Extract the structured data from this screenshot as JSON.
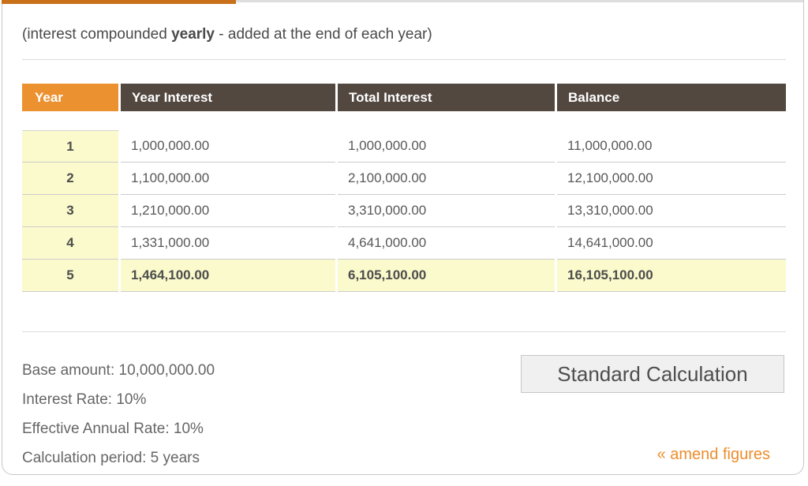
{
  "note": {
    "prefix": "(interest compounded ",
    "bold": "yearly",
    "suffix": " - added at the end of each year)"
  },
  "table": {
    "headers": [
      "Year",
      "Year Interest",
      "Total Interest",
      "Balance"
    ],
    "rows": [
      {
        "year": "1",
        "year_interest": "1,000,000.00",
        "total_interest": "1,000,000.00",
        "balance": "11,000,000.00"
      },
      {
        "year": "2",
        "year_interest": "1,100,000.00",
        "total_interest": "2,100,000.00",
        "balance": "12,100,000.00"
      },
      {
        "year": "3",
        "year_interest": "1,210,000.00",
        "total_interest": "3,310,000.00",
        "balance": "13,310,000.00"
      },
      {
        "year": "4",
        "year_interest": "1,331,000.00",
        "total_interest": "4,641,000.00",
        "balance": "14,641,000.00"
      },
      {
        "year": "5",
        "year_interest": "1,464,100.00",
        "total_interest": "6,105,100.00",
        "balance": "16,105,100.00"
      }
    ]
  },
  "summary": {
    "base_amount": "Base amount: 10,000,000.00",
    "interest_rate": "Interest Rate: 10%",
    "effective_annual_rate": "Effective Annual Rate: 10%",
    "calculation_period": "Calculation period: 5 years"
  },
  "actions": {
    "standard_calculation_label": "Standard Calculation",
    "amend_figures_label": "« amend figures"
  },
  "colors": {
    "accent_orange": "#ec9130",
    "tab_strip_orange": "#c9701b",
    "header_brown": "#534840",
    "highlight_yellow": "#fafacc",
    "link_orange": "#ee8d2c"
  }
}
